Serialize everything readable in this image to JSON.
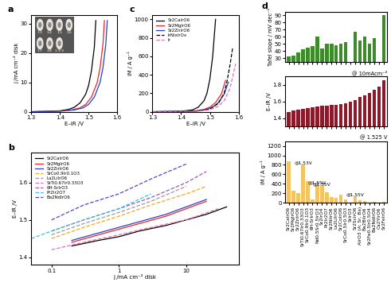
{
  "chart_data": [
    {
      "type": "line",
      "title": "a",
      "x_label": "E–iR /V",
      "y_label": "j /mA cm⁻² disk",
      "xlim": [
        1.3,
        1.6
      ],
      "xticks": [
        1.3,
        1.4,
        1.5,
        1.6
      ],
      "ylim": [
        0,
        33
      ],
      "yticks": [
        0,
        10,
        20,
        30
      ],
      "inset_labels": [
        "1.3",
        "1.4",
        "1.5",
        "1.6",
        "1.7",
        "1.8",
        "1.9 V"
      ],
      "series": [
        {
          "name": "Sr2CaIrO6",
          "color": "#000000",
          "line_style": "solid",
          "x": [
            1.3,
            1.35,
            1.4,
            1.43,
            1.45,
            1.47,
            1.49,
            1.5,
            1.51,
            1.52,
            1.525
          ],
          "values": [
            0,
            0.1,
            0.3,
            0.8,
            1.5,
            3,
            6,
            9,
            14,
            22,
            31
          ]
        },
        {
          "name": "Sr2MgIrO6",
          "color": "#e8262b",
          "line_style": "solid",
          "x": [
            1.3,
            1.35,
            1.4,
            1.44,
            1.47,
            1.49,
            1.51,
            1.53,
            1.54,
            1.55,
            1.555
          ],
          "values": [
            0,
            0.1,
            0.2,
            0.6,
            1.3,
            2.5,
            5,
            10,
            15,
            23,
            31
          ]
        },
        {
          "name": "Sr2ZnIrO6",
          "color": "#2b3fc7",
          "line_style": "solid",
          "x": [
            1.3,
            1.35,
            1.4,
            1.45,
            1.48,
            1.5,
            1.52,
            1.54,
            1.55,
            1.56,
            1.565
          ],
          "values": [
            0,
            0.1,
            0.2,
            0.6,
            1.3,
            2.5,
            5,
            10,
            15,
            23,
            31
          ]
        }
      ]
    },
    {
      "type": "line",
      "title": "b",
      "x_label": "j /mA cm⁻² disk",
      "y_label": "E–iR /V",
      "log": "x",
      "xlim": [
        0.05,
        60
      ],
      "xticks": [
        0.1,
        1,
        10
      ],
      "ylim": [
        1.38,
        1.68
      ],
      "yticks": [
        1.4,
        1.5,
        1.6
      ],
      "legend": "upper left",
      "series": [
        {
          "name": "Sr2CaIrO6",
          "color": "#000000",
          "line_style": "solid",
          "x": [
            0.2,
            0.5,
            1,
            2,
            5,
            10,
            20,
            40
          ],
          "values": [
            1.43,
            1.445,
            1.455,
            1.47,
            1.485,
            1.5,
            1.515,
            1.535
          ]
        },
        {
          "name": "Sr2MgIrO6",
          "color": "#e8262b",
          "line_style": "solid",
          "x": [
            0.2,
            0.5,
            1,
            2,
            5,
            10,
            20
          ],
          "values": [
            1.44,
            1.46,
            1.475,
            1.49,
            1.51,
            1.53,
            1.55
          ]
        },
        {
          "name": "Sr2ZnIrO6",
          "color": "#2b3fc7",
          "line_style": "solid",
          "x": [
            0.2,
            0.5,
            1,
            2,
            5,
            10,
            20
          ],
          "values": [
            1.445,
            1.465,
            1.48,
            1.495,
            1.515,
            1.535,
            1.555
          ]
        },
        {
          "name": "SrCo0.9Ir0.1O3",
          "color": "#f5a623",
          "line_style": "dashed",
          "x": [
            0.1,
            0.3,
            1,
            3,
            10,
            20
          ],
          "values": [
            1.45,
            1.48,
            1.51,
            1.54,
            1.57,
            1.59
          ]
        },
        {
          "name": "La2LiIrO6",
          "color": "#9a9a9a",
          "line_style": "dashed",
          "x": [
            0.1,
            0.3,
            1,
            3,
            10
          ],
          "values": [
            1.46,
            1.49,
            1.52,
            1.55,
            1.59
          ]
        },
        {
          "name": "SrTi0.67Ir0.33O3",
          "color": "#e86fb0",
          "line_style": "dashed",
          "x": [
            0.1,
            0.3,
            1,
            3,
            10,
            30
          ],
          "values": [
            1.42,
            1.44,
            1.46,
            1.48,
            1.5,
            1.53
          ]
        },
        {
          "name": "6H-SrIrO3",
          "color": "#9b59b6",
          "line_style": "dashed",
          "x": [
            0.1,
            0.3,
            1,
            3,
            10,
            20
          ],
          "values": [
            1.47,
            1.5,
            1.53,
            1.56,
            1.6,
            1.63
          ]
        },
        {
          "name": "Pr2Ir2O7",
          "color": "#34c5e0",
          "line_style": "dashed",
          "x": [
            0.05,
            0.1,
            0.3,
            1,
            3
          ],
          "values": [
            1.45,
            1.47,
            1.5,
            1.53,
            1.57
          ]
        },
        {
          "name": "Ba2NdIrO6",
          "color": "#5b3fd1",
          "line_style": "dashed",
          "x": [
            0.1,
            0.3,
            1,
            3,
            10
          ],
          "values": [
            1.5,
            1.54,
            1.57,
            1.61,
            1.65
          ]
        }
      ]
    },
    {
      "type": "line",
      "title": "c",
      "x_label": "E–iR /V",
      "y_label": "iM / A g⁻¹",
      "xlim": [
        1.3,
        1.6
      ],
      "xticks": [
        1.3,
        1.4,
        1.5,
        1.6
      ],
      "ylim": [
        0,
        1050
      ],
      "yticks": [
        0,
        200,
        400,
        600,
        800,
        1000
      ],
      "legend": "upper left",
      "series": [
        {
          "name": "Sr2CaIrO6",
          "color": "#000000",
          "line_style": "solid",
          "x": [
            1.3,
            1.4,
            1.44,
            1.46,
            1.48,
            1.49,
            1.5,
            1.51,
            1.52
          ],
          "values": [
            0,
            5,
            20,
            50,
            120,
            200,
            350,
            600,
            1000
          ]
        },
        {
          "name": "Sr2MgIrO6",
          "color": "#e8262b",
          "line_style": "solid",
          "x": [
            1.3,
            1.4,
            1.45,
            1.48,
            1.5,
            1.52,
            1.54,
            1.55,
            1.555
          ],
          "values": [
            0,
            3,
            10,
            25,
            50,
            100,
            190,
            290,
            340
          ]
        },
        {
          "name": "Sr2ZnIrO6",
          "color": "#2b3fc7",
          "line_style": "solid",
          "x": [
            1.3,
            1.4,
            1.46,
            1.49,
            1.51,
            1.53,
            1.55,
            1.56,
            1.565
          ],
          "values": [
            0,
            3,
            10,
            25,
            50,
            100,
            190,
            280,
            320
          ]
        },
        {
          "name": "IrNixIrOx",
          "color": "#000000",
          "line_style": "dashed",
          "x": [
            1.3,
            1.45,
            1.5,
            1.53,
            1.55,
            1.56,
            1.57,
            1.58
          ],
          "values": [
            0,
            5,
            30,
            90,
            200,
            330,
            500,
            700
          ]
        },
        {
          "name": "Ir",
          "color": "#e86fb0",
          "line_style": "dashed",
          "x": [
            1.3,
            1.45,
            1.5,
            1.53,
            1.55,
            1.57,
            1.58,
            1.59
          ],
          "values": [
            0,
            5,
            20,
            60,
            120,
            250,
            380,
            520
          ]
        }
      ]
    },
    {
      "type": "bar",
      "title": "d",
      "y_label": "Tafel slope / mV dec⁻¹",
      "color": "#3d8b2a",
      "ylim": [
        25,
        95
      ],
      "yticks": [
        30,
        40,
        50,
        60,
        70,
        80,
        90
      ],
      "tick_labels": "y",
      "categories": [
        "Sr2CaIrO6",
        "Sr2MgIrO6",
        "Sr2ZnIrO6",
        "SrTi0.67Ir0.33O3",
        "SrCo0.9Ir0.1O3",
        "6H-SrIrO3",
        "Nd0.5Sr0.5IrO3",
        "Sr2IrO4",
        "Pr2Ir2O7",
        "Sr2NiIrO6",
        "La2LiIrO6",
        "Sr2CoIrO6",
        "SrCo0.5Ir0.5O3",
        "SrIrO3",
        "Sr2ScIrO6",
        "AIrO3 (A: Sr, Ba)",
        "Ba2BiIrO6",
        "Sr2Fe0.5Ir0.5O4",
        "Ba2NdIrO6",
        "Ca2YIrO6",
        "Sr2FeIrO6"
      ],
      "values": [
        33,
        34,
        38,
        42,
        45,
        47,
        60,
        44,
        50,
        50,
        48,
        50,
        52,
        null,
        67,
        55,
        60,
        50,
        58,
        null,
        90
      ]
    },
    {
      "type": "bar",
      "y_label": "E–iR /V",
      "note": "@ 10mAcm⁻²",
      "color": "#8b1a2a",
      "ylim": [
        1.3,
        1.9
      ],
      "yticks": [
        1.4,
        1.6,
        1.8
      ],
      "tick_labels": "y",
      "categories": [
        "Sr2CaIrO6",
        "Sr2MgIrO6",
        "Sr2ZnIrO6",
        "SrTi0.67Ir0.33O3",
        "SrCo0.9Ir0.1O3",
        "6H-SrIrO3",
        "Nd0.5Sr0.5IrO3",
        "Sr2IrO4",
        "Pr2Ir2O7",
        "Sr2NiIrO6",
        "La2LiIrO6",
        "Sr2CoIrO6",
        "SrCo0.5Ir0.5O3",
        "SrIrO3",
        "Sr2ScIrO6",
        "AIrO3 (A: Sr, Ba)",
        "Ba2BiIrO6",
        "Sr2Fe0.5Ir0.5O4",
        "Ba2NdIrO6",
        "Ca2YIrO6",
        "Sr2FeIrO6"
      ],
      "values": [
        1.47,
        1.49,
        1.5,
        1.51,
        1.52,
        1.53,
        1.54,
        1.55,
        1.55,
        1.56,
        1.56,
        1.57,
        1.58,
        1.6,
        1.62,
        1.65,
        1.67,
        1.7,
        1.74,
        1.78,
        1.85
      ]
    },
    {
      "type": "bar",
      "y_label": "iM / A g⁻¹",
      "note": "@ 1.525 V",
      "color": "#f2c464",
      "ylim": [
        0,
        1300
      ],
      "yticks": [
        0,
        200,
        400,
        600,
        800,
        1000,
        1200
      ],
      "categories": [
        "Sr2CaIrO6",
        "Sr2MgIrO6",
        "Sr2ZnIrO6",
        "SrTi0.67Ir0.33O3",
        "SrCo0.9Ir0.1O3",
        "6H-SrIrO3",
        "Nd0.5Sr0.5IrO3",
        "Sr2IrO4",
        "Pr2Ir2O7",
        "Sr2NiIrO6",
        "La2LiIrO6",
        "Sr2CoIrO6",
        "SrCo0.5Ir0.5O3",
        "SrIrO3",
        "Sr2ScIrO6",
        "AIrO3 (A: Sr, Ba)",
        "Ba2BiIrO6",
        "Sr2Fe0.5Ir0.5O4",
        "Ba2NdIrO6",
        "Ca2YIrO6",
        "Sr2FeIrO6"
      ],
      "values": [
        880,
        250,
        200,
        800,
        450,
        70,
        380,
        350,
        230,
        130,
        110,
        180,
        70,
        null,
        140,
        60,
        40,
        null,
        30,
        null,
        20
      ],
      "annotations": [
        {
          "text": "@1.53V",
          "x": 3,
          "y": 800
        },
        {
          "text": "@1.55V",
          "x": 6,
          "y": 380
        },
        {
          "text": "@1.55V",
          "x": 7,
          "y": 350
        },
        {
          "text": "@1.55V",
          "x": 14,
          "y": 140
        }
      ]
    }
  ]
}
